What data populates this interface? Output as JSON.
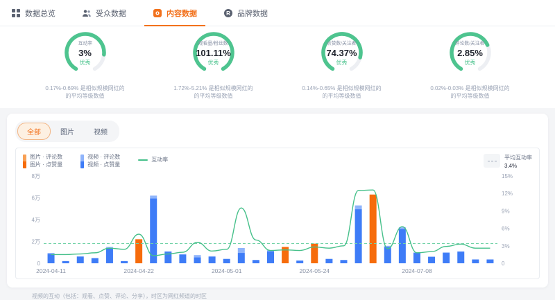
{
  "nav": {
    "items": [
      {
        "label": "数据总览"
      },
      {
        "label": "受众数据"
      },
      {
        "label": "内容数据"
      },
      {
        "label": "品牌数据"
      }
    ],
    "active_index": 2
  },
  "gauges": [
    {
      "label": "互动率",
      "value": "3%",
      "grade": "优秀",
      "fraction": 0.82,
      "desc_line1": "0.17%-0.69% 是相似规模网红的",
      "desc_line2": "的平均等级数值"
    },
    {
      "label": "观看量/粉丝数",
      "value": "101.11%",
      "grade": "优秀",
      "fraction": 1,
      "desc_line1": "1.72%-5.21% 是相似规模网红的",
      "desc_line2": "的平均等级数值"
    },
    {
      "label": "点赞数/关注者",
      "value": "74.37%",
      "grade": "优秀",
      "fraction": 0.85,
      "desc_line1": "0.14%-0.65% 是相似规模网红的",
      "desc_line2": "的平均等级数值"
    },
    {
      "label": "评论数/关注者",
      "value": "2.85%",
      "grade": "优秀",
      "fraction": 0.72,
      "desc_line1": "0.02%-0.03% 是相似规模网红的",
      "desc_line2": "的平均等级数值"
    }
  ],
  "filters": {
    "tabs": [
      "全部",
      "图片",
      "视频"
    ],
    "active": "全部"
  },
  "legend": {
    "image_comments": "图片 · 评论数",
    "image_likes": "图片 · 点赞量",
    "video_comments": "视频 · 评论数",
    "video_likes": "视频 · 点赞量",
    "rate": "互动率",
    "avg_label": "平均互动率",
    "avg_value": "3.4%"
  },
  "chart_data": {
    "type": "bar+line",
    "title": "",
    "left_axis": {
      "ticks": [
        "0",
        "2万",
        "4万",
        "6万",
        "8万"
      ],
      "values": [
        0,
        2,
        4,
        6,
        8
      ],
      "max": 8,
      "unit": "万"
    },
    "right_axis": {
      "ticks": [
        "0",
        "3%",
        "6%",
        "9%",
        "12%",
        "15%"
      ],
      "values": [
        0,
        3,
        6,
        9,
        12,
        15
      ],
      "max": 15,
      "unit": "%"
    },
    "avg_rate_percent": 3.4,
    "bars": [
      {
        "type": "video",
        "comments": 0.1,
        "likes": 0.85
      },
      {
        "type": "video",
        "comments": 0,
        "likes": 0.2
      },
      {
        "type": "video",
        "comments": 0.05,
        "likes": 0.6
      },
      {
        "type": "video",
        "comments": 0.05,
        "likes": 0.45
      },
      {
        "type": "video",
        "comments": 0.1,
        "likes": 1.4
      },
      {
        "type": "video",
        "comments": 0,
        "likes": 0.2
      },
      {
        "type": "image",
        "comments": 0,
        "likes": 2.2
      },
      {
        "type": "video",
        "comments": 0.25,
        "likes": 5.95
      },
      {
        "type": "video",
        "comments": 0.05,
        "likes": 1.05
      },
      {
        "type": "video",
        "comments": 0.05,
        "likes": 0.8
      },
      {
        "type": "video",
        "comments": 0.2,
        "likes": 0.55
      },
      {
        "type": "video",
        "comments": 0.05,
        "likes": 0.6
      },
      {
        "type": "video",
        "comments": 0,
        "likes": 0.4
      },
      {
        "type": "video",
        "comments": 0.45,
        "likes": 0.95
      },
      {
        "type": "video",
        "comments": 0,
        "likes": 0.3
      },
      {
        "type": "video",
        "comments": 0.1,
        "likes": 1.1
      },
      {
        "type": "image",
        "comments": 0,
        "likes": 1.5
      },
      {
        "type": "video",
        "comments": 0,
        "likes": 0.25
      },
      {
        "type": "image",
        "comments": 0,
        "likes": 1.8
      },
      {
        "type": "video",
        "comments": 0,
        "likes": 0.4
      },
      {
        "type": "video",
        "comments": 0,
        "likes": 0.3
      },
      {
        "type": "video",
        "comments": 0.35,
        "likes": 4.95
      },
      {
        "type": "image",
        "comments": 0,
        "likes": 6.3
      },
      {
        "type": "video",
        "comments": 0.1,
        "likes": 1.5
      },
      {
        "type": "video",
        "comments": 0.15,
        "likes": 3.15
      },
      {
        "type": "video",
        "comments": 0.05,
        "likes": 0.95
      },
      {
        "type": "video",
        "comments": 0,
        "likes": 0.6
      },
      {
        "type": "video",
        "comments": 0.05,
        "likes": 0.95
      },
      {
        "type": "video",
        "comments": 0.05,
        "likes": 1.05
      },
      {
        "type": "video",
        "comments": 0,
        "likes": 0.35
      },
      {
        "type": "video",
        "comments": 0,
        "likes": 0.35
      }
    ],
    "rate_line_percent": [
      1.5,
      1.5,
      1.6,
      1.8,
      2.6,
      2.4,
      5.0,
      1.3,
      1.6,
      1.9,
      3.6,
      2.1,
      2.4,
      9.5,
      4.0,
      2.2,
      2.3,
      2.2,
      2.8,
      2.6,
      3.0,
      12.5,
      12.6,
      2.5,
      6.3,
      1.8,
      2.0,
      2.9,
      3.3,
      2.6,
      2.6
    ],
    "x_ticks": [
      {
        "index": 0,
        "label": "2024-04-11"
      },
      {
        "index": 6,
        "label": "2024-04-22"
      },
      {
        "index": 12,
        "label": "2024-05-01"
      },
      {
        "index": 18,
        "label": "2024-05-24"
      },
      {
        "index": 25,
        "label": "2024-07-08"
      }
    ]
  },
  "footer": {
    "note": "视频的互动（包括：观看、点赞、评论、分享），时区为网红频道的时区"
  },
  "colors": {
    "accent_orange": "#f2711c",
    "bar_image": "#f66c0c",
    "bar_image_light": "#f8a055",
    "bar_video": "#3e7cf7",
    "bar_video_light": "#8fb4fb",
    "line_green": "#46c08a",
    "avg_line_green": "#72d3a8",
    "gauge_green": "#4ec48f",
    "gauge_track": "#edeff3",
    "axis_text": "#9aa3b5",
    "date_text": "#8a93a6"
  }
}
